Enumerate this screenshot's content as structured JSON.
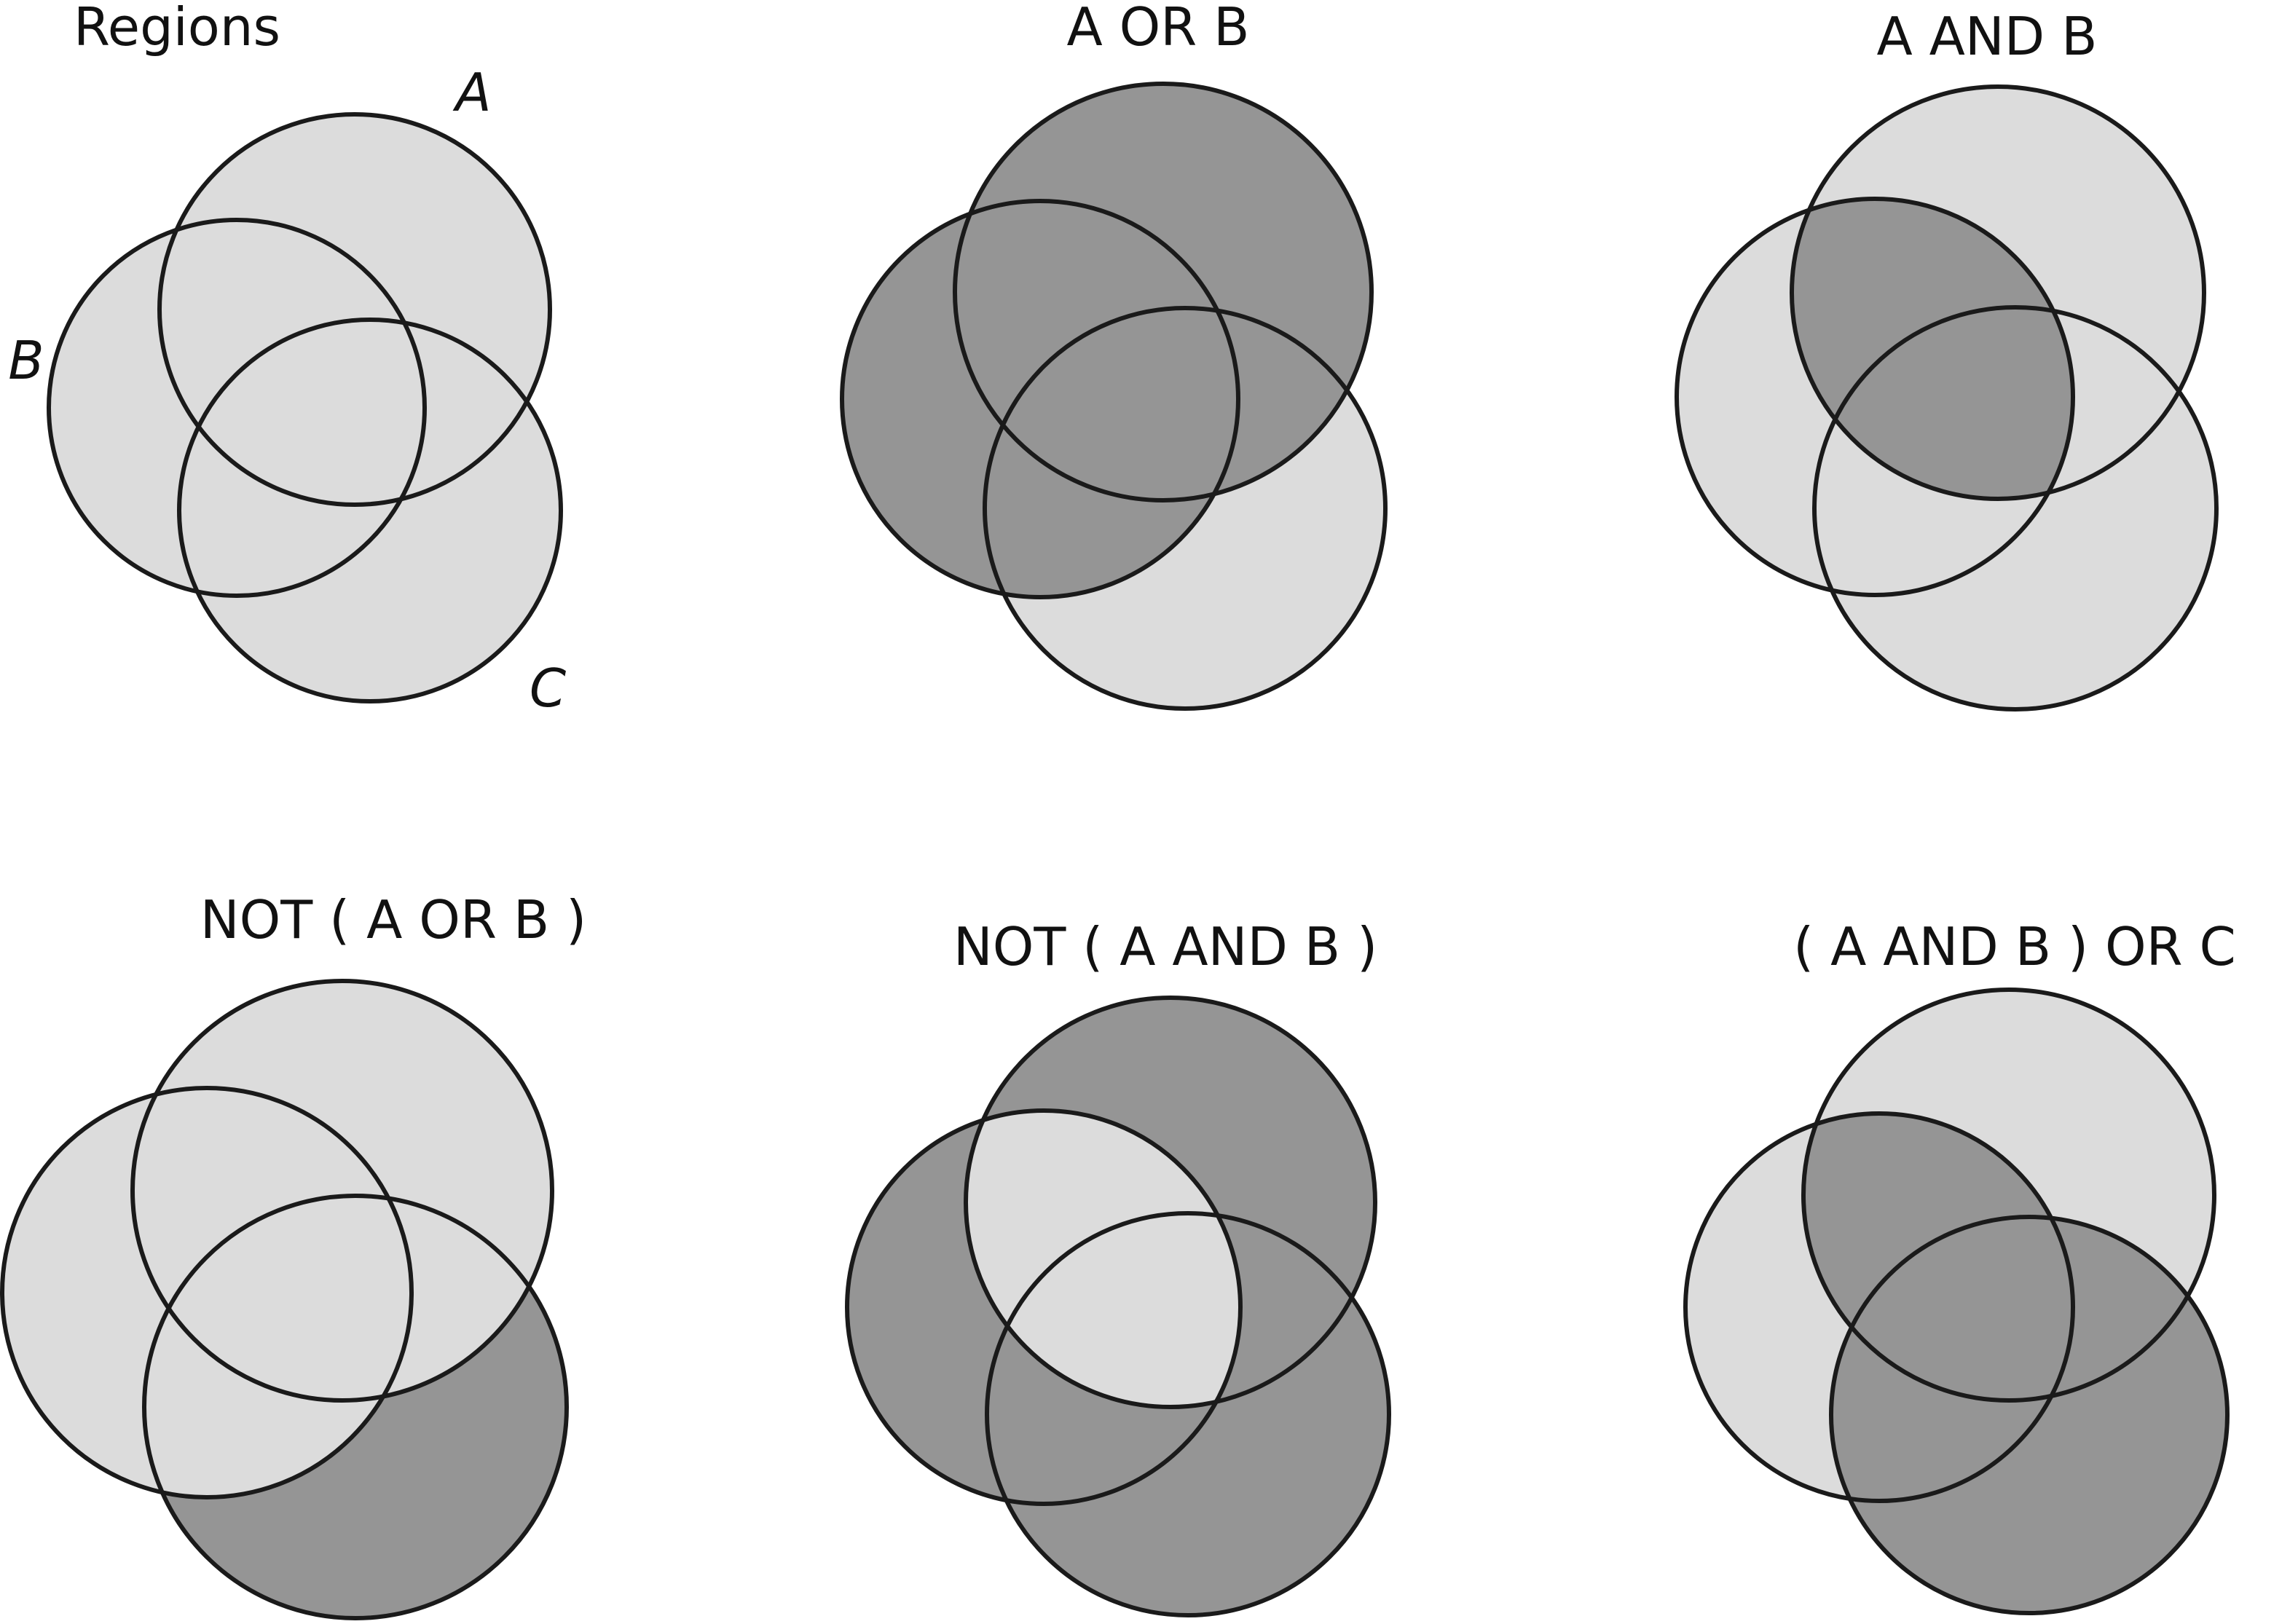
{
  "colors": {
    "unshaded": "#dcdcdc",
    "shaded": "#959595",
    "outline": "#1a1a1a",
    "background": "#ffffff"
  },
  "panels": [
    {
      "title": "Regions",
      "labels": {
        "a": "A",
        "b": "B",
        "c": "C"
      },
      "shaded_regions": []
    },
    {
      "title": "A  OR  B",
      "labels": {
        "a": "",
        "b": "",
        "c": ""
      },
      "shaded_regions": [
        "a",
        "b",
        "ab",
        "ac",
        "bc",
        "abc"
      ]
    },
    {
      "title": "A  AND  B",
      "labels": {
        "a": "",
        "b": "",
        "c": ""
      },
      "shaded_regions": [
        "ab",
        "abc"
      ]
    },
    {
      "title": "NOT ( A  OR  B )",
      "labels": {
        "a": "",
        "b": "",
        "c": ""
      },
      "shaded_regions": [
        "c"
      ]
    },
    {
      "title": "NOT ( A  AND  B )",
      "labels": {
        "a": "",
        "b": "",
        "c": ""
      },
      "shaded_regions": [
        "a",
        "b",
        "c",
        "ac",
        "bc"
      ]
    },
    {
      "title": "( A  AND  B ) OR  C",
      "labels": {
        "a": "",
        "b": "",
        "c": ""
      },
      "shaded_regions": [
        "ab",
        "c",
        "ac",
        "bc",
        "abc"
      ]
    }
  ]
}
